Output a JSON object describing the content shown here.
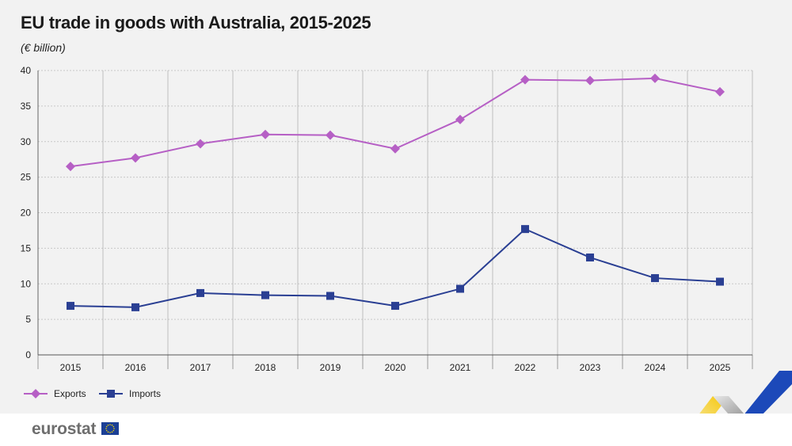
{
  "chart_data": {
    "type": "line",
    "title": "EU trade in goods with Australia, 2015-2025",
    "subtitle": "(€ billion)",
    "categories": [
      "2015",
      "2016",
      "2017",
      "2018",
      "2019",
      "2020",
      "2021",
      "2022",
      "2023",
      "2024",
      "2025"
    ],
    "ylim": [
      0,
      40
    ],
    "yticks": [
      0,
      5,
      10,
      15,
      20,
      25,
      30,
      35,
      40
    ],
    "grid": true,
    "legend_position": "bottom-left",
    "series": [
      {
        "name": "Exports",
        "color": "#b65fc5",
        "marker": "diamond",
        "values": [
          26.5,
          27.7,
          29.7,
          31.0,
          30.9,
          29.0,
          33.1,
          38.7,
          38.6,
          38.9,
          37.0
        ]
      },
      {
        "name": "Imports",
        "color": "#2a3f93",
        "marker": "square",
        "values": [
          6.9,
          6.7,
          8.7,
          8.4,
          8.3,
          6.9,
          9.3,
          17.7,
          13.7,
          10.8,
          10.3
        ]
      }
    ]
  },
  "footer": {
    "logo_text": "eurostat",
    "flag_icon": "eu-flag-icon"
  }
}
